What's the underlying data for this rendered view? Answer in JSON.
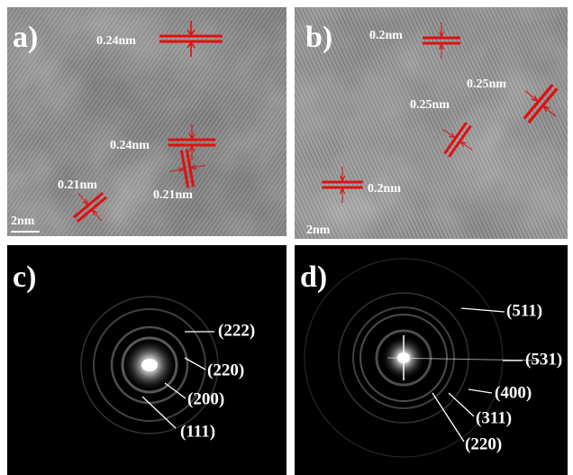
{
  "panels": [
    {
      "label": "a)",
      "scale_bar": "2nm",
      "annotations": [
        "0.24nm",
        "0.24nm",
        "0.21nm",
        "0.21nm"
      ]
    },
    {
      "label": "b)",
      "scale_bar": "2nm",
      "annotations": [
        "0.2nm",
        "0.25nm",
        "0.25nm",
        "0.2nm"
      ]
    },
    {
      "label": "c)",
      "annotations": [
        "(222)",
        "(220)",
        "(200)",
        "(111)"
      ]
    },
    {
      "label": "d)",
      "annotations": [
        "(511)",
        "(531)",
        "(400)",
        "(311)",
        "(220)"
      ]
    }
  ]
}
